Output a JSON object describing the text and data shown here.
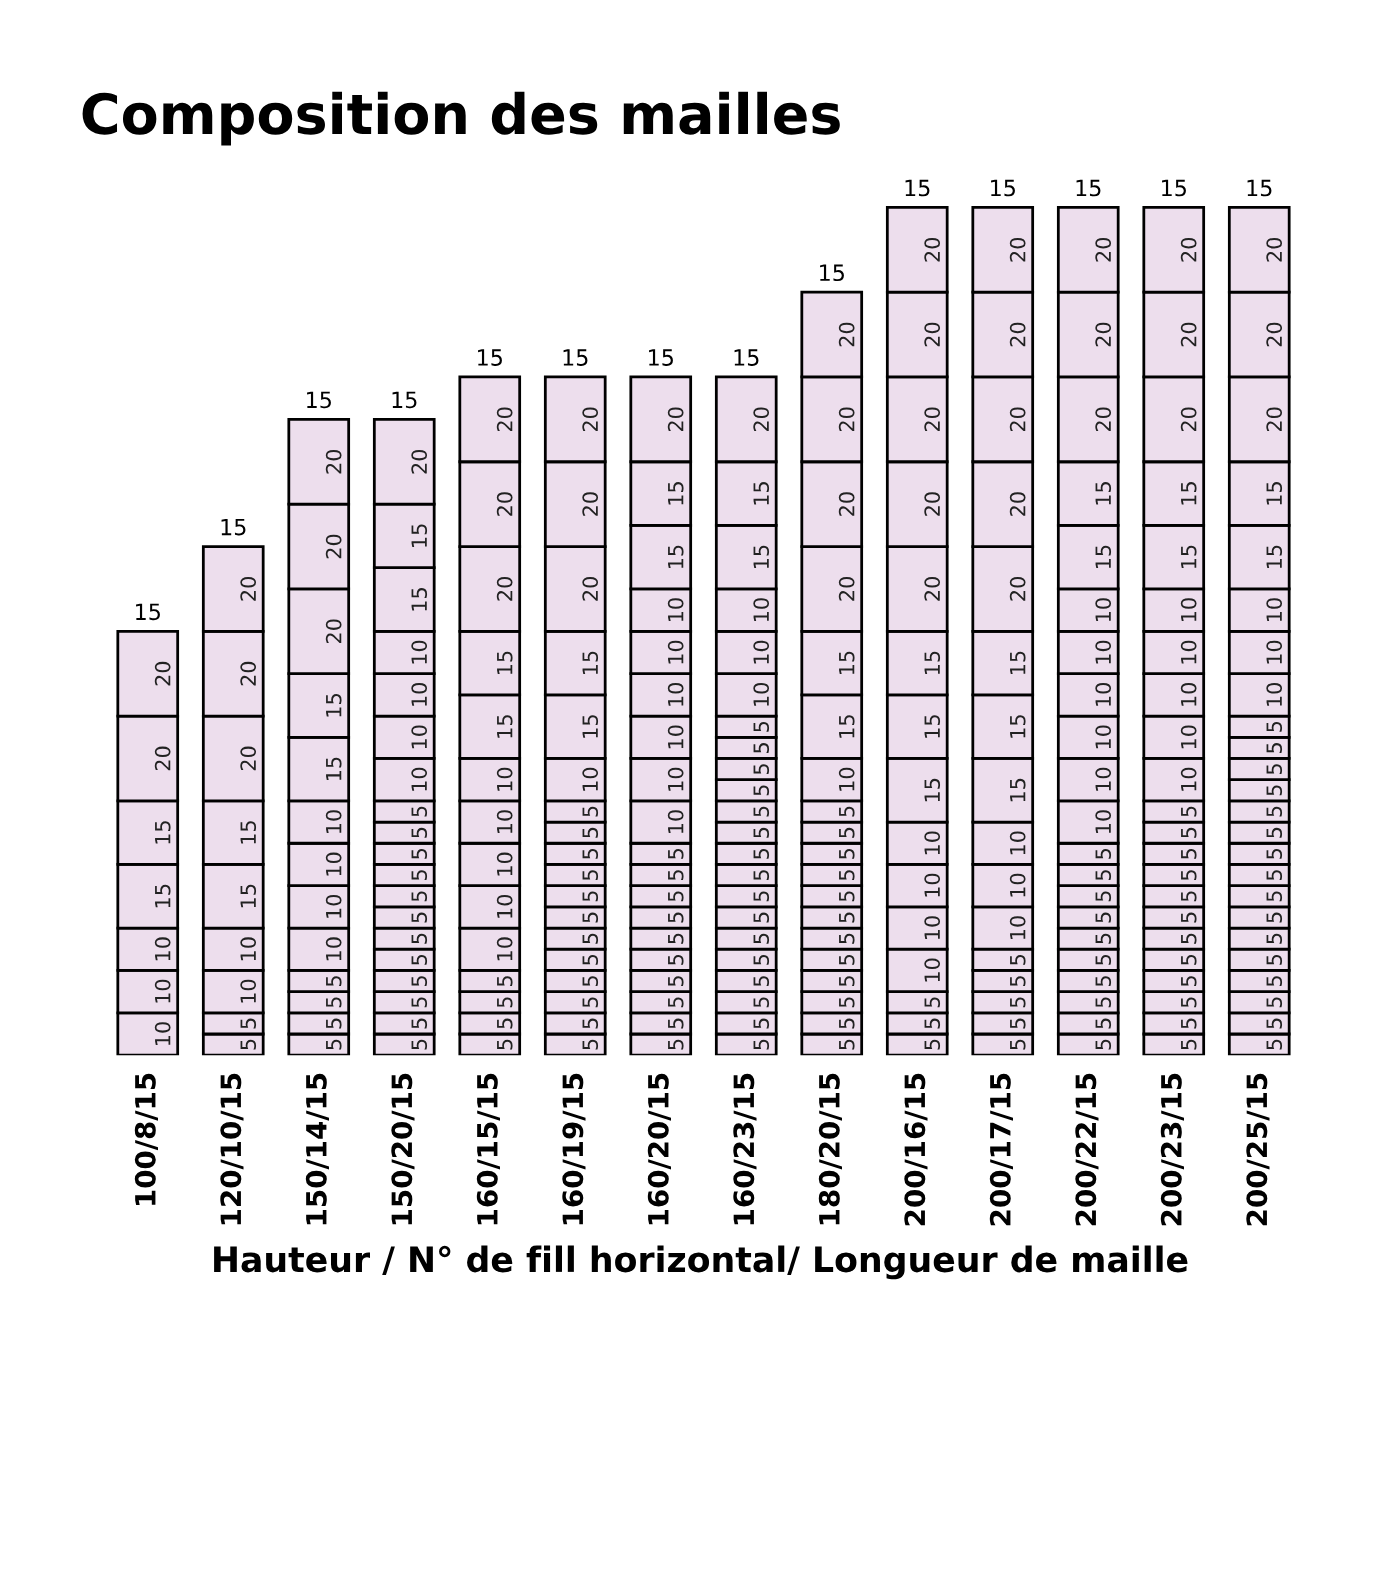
{
  "chart_data": {
    "type": "bar",
    "stacked": true,
    "title": "Composition des mailles",
    "xlabel": "Hauteur / N° de fill horizontal/ Longueur de maille",
    "categories": [
      "100/8/15",
      "120/10/15",
      "150/14/15",
      "150/20/15",
      "160/15/15",
      "160/19/15",
      "160/20/15",
      "160/23/15",
      "180/20/15",
      "200/16/15",
      "200/17/15",
      "200/22/15",
      "200/23/15",
      "200/25/15"
    ],
    "series": [
      {
        "color": "#eddeed",
        "values": [
          10,
          5,
          5,
          5,
          5,
          5,
          5,
          5,
          5,
          5,
          5,
          5,
          5,
          5
        ]
      },
      {
        "color": "#eddeed",
        "values": [
          10,
          5,
          5,
          5,
          5,
          5,
          5,
          5,
          5,
          5,
          5,
          5,
          5,
          5
        ]
      },
      {
        "color": "#eddeed",
        "values": [
          10,
          10,
          5,
          5,
          5,
          5,
          5,
          5,
          5,
          5,
          5,
          5,
          5,
          5
        ]
      },
      {
        "color": "#eddeed",
        "values": [
          15,
          10,
          5,
          5,
          5,
          5,
          5,
          5,
          5,
          10,
          5,
          5,
          5,
          5
        ]
      },
      {
        "color": "#eddeed",
        "values": [
          15,
          15,
          10,
          5,
          10,
          5,
          5,
          5,
          5,
          10,
          5,
          5,
          5,
          5
        ]
      },
      {
        "color": "#eddeed",
        "values": [
          20,
          15,
          10,
          5,
          10,
          5,
          5,
          5,
          5,
          10,
          10,
          5,
          5,
          5
        ]
      },
      {
        "color": "#eddeed",
        "values": [
          20,
          20,
          10,
          5,
          10,
          5,
          5,
          5,
          5,
          10,
          10,
          5,
          5,
          5
        ]
      },
      {
        "color": "#eddeed",
        "values": [
          null,
          20,
          10,
          5,
          10,
          5,
          5,
          5,
          5,
          15,
          10,
          5,
          5,
          5
        ]
      },
      {
        "color": "#eddeed",
        "values": [
          null,
          20,
          15,
          5,
          10,
          5,
          5,
          5,
          5,
          15,
          15,
          5,
          5,
          5
        ]
      },
      {
        "color": "#eddeed",
        "values": [
          null,
          null,
          15,
          5,
          15,
          5,
          5,
          5,
          5,
          15,
          15,
          5,
          5,
          5
        ]
      },
      {
        "color": "#eddeed",
        "values": [
          null,
          null,
          20,
          5,
          15,
          5,
          10,
          5,
          5,
          20,
          15,
          10,
          5,
          5
        ]
      },
      {
        "color": "#eddeed",
        "values": [
          null,
          null,
          20,
          5,
          20,
          5,
          10,
          5,
          5,
          20,
          20,
          10,
          5,
          5
        ]
      },
      {
        "color": "#eddeed",
        "values": [
          null,
          null,
          20,
          10,
          20,
          10,
          10,
          5,
          10,
          20,
          20,
          10,
          10,
          5
        ]
      },
      {
        "color": "#eddeed",
        "values": [
          null,
          null,
          null,
          10,
          20,
          15,
          10,
          5,
          15,
          20,
          20,
          10,
          10,
          5
        ]
      },
      {
        "color": "#eddeed",
        "values": [
          null,
          null,
          null,
          10,
          null,
          15,
          10,
          5,
          15,
          20,
          20,
          10,
          10,
          5
        ]
      },
      {
        "color": "#eddeed",
        "values": [
          null,
          null,
          null,
          10,
          null,
          20,
          10,
          5,
          20,
          null,
          20,
          10,
          10,
          5
        ]
      },
      {
        "color": "#eddeed",
        "values": [
          null,
          null,
          null,
          15,
          null,
          20,
          15,
          10,
          20,
          null,
          null,
          15,
          10,
          10
        ]
      },
      {
        "color": "#eddeed",
        "values": [
          null,
          null,
          null,
          15,
          null,
          20,
          15,
          10,
          20,
          null,
          null,
          15,
          15,
          10
        ]
      },
      {
        "color": "#eddeed",
        "values": [
          null,
          null,
          null,
          20,
          null,
          null,
          20,
          10,
          20,
          null,
          null,
          20,
          15,
          10
        ]
      },
      {
        "color": "#eddeed",
        "values": [
          null,
          null,
          null,
          null,
          null,
          null,
          null,
          15,
          null,
          null,
          null,
          20,
          20,
          15
        ]
      },
      {
        "color": "#eddeed",
        "values": [
          null,
          null,
          null,
          null,
          null,
          null,
          null,
          15,
          null,
          null,
          null,
          20,
          20,
          15
        ]
      },
      {
        "color": "#eddeed",
        "values": [
          null,
          null,
          null,
          null,
          null,
          null,
          null,
          20,
          null,
          null,
          null,
          null,
          20,
          20
        ]
      },
      {
        "color": "#eddeed",
        "values": [
          null,
          null,
          null,
          null,
          null,
          null,
          null,
          null,
          null,
          null,
          null,
          null,
          null,
          20
        ]
      },
      {
        "color": "#eddeed",
        "values": [
          null,
          null,
          null,
          null,
          null,
          null,
          null,
          null,
          null,
          null,
          null,
          null,
          null,
          20
        ]
      }
    ],
    "data_labels": true,
    "tick_labels": "x",
    "grid": false,
    "legend": false,
    "annotations": [
      {
        "text": "15",
        "x": "100/8/15",
        "y": 100
      },
      {
        "text": "15",
        "x": "120/10/15",
        "y": 120
      },
      {
        "text": "15",
        "x": "150/14/15",
        "y": 150
      },
      {
        "text": "15",
        "x": "150/20/15",
        "y": 150
      },
      {
        "text": "15",
        "x": "160/15/15",
        "y": 160
      },
      {
        "text": "15",
        "x": "160/19/15",
        "y": 160
      },
      {
        "text": "15",
        "x": "160/20/15",
        "y": 160
      },
      {
        "text": "15",
        "x": "160/23/15",
        "y": 160
      },
      {
        "text": "15",
        "x": "180/20/15",
        "y": 180
      },
      {
        "text": "15",
        "x": "200/16/15",
        "y": 200
      },
      {
        "text": "15",
        "x": "200/17/15",
        "y": 200
      },
      {
        "text": "15",
        "x": "200/22/15",
        "y": 200
      },
      {
        "text": "15",
        "x": "200/23/15",
        "y": 200
      },
      {
        "text": "15",
        "x": "200/25/15",
        "y": 200
      }
    ]
  }
}
